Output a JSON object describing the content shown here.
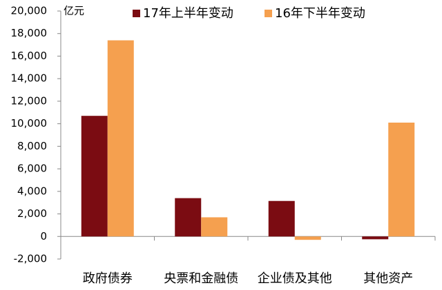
{
  "chart_data": {
    "type": "bar",
    "y_unit": "亿元",
    "categories": [
      "政府债券",
      "央票和金融债",
      "企业债及其他",
      "其他资产"
    ],
    "series": [
      {
        "name": "17年上半年变动",
        "color": "#7b0c12",
        "values": [
          10700,
          3400,
          3150,
          -250
        ]
      },
      {
        "name": "16年下半年变动",
        "color": "#f5a04f",
        "values": [
          17400,
          1700,
          -300,
          10100
        ]
      }
    ],
    "ylim": [
      -2000,
      20000
    ],
    "yticks": [
      {
        "value": -2000,
        "label": "-2,000"
      },
      0,
      {
        "value": 2000,
        "label": "2,000"
      },
      {
        "value": 4000,
        "label": "4,000"
      },
      {
        "value": 6000,
        "label": "6,000"
      },
      {
        "value": 8000,
        "label": "8,000"
      },
      {
        "value": 10000,
        "label": "10,000"
      },
      {
        "value": 12000,
        "label": "12,000"
      },
      {
        "value": 14000,
        "label": "14,000"
      },
      {
        "value": 16000,
        "label": "16,000"
      },
      {
        "value": 18000,
        "label": "18,000"
      },
      {
        "value": 20000,
        "label": "20,000"
      }
    ],
    "legend_position": "top"
  }
}
